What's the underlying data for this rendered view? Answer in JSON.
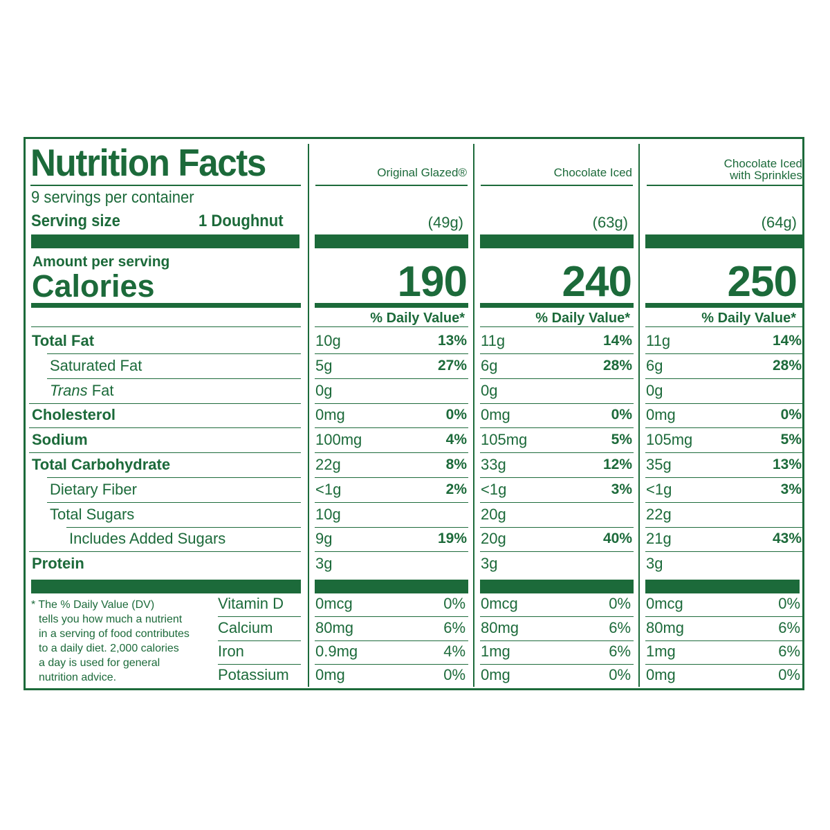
{
  "label": {
    "title": "Nutrition Facts",
    "servings_per_container": "9 servings per container",
    "serving_size_label": "Serving size",
    "serving_size_value": "1 Doughnut",
    "amount_per_serving": "Amount per serving",
    "calories_label": "Calories",
    "dv_header": "% Daily Value*"
  },
  "products": [
    {
      "name": "Original Glazed®",
      "weight": "(49g)",
      "calories": "190"
    },
    {
      "name": "Chocolate Iced",
      "weight": "(63g)",
      "calories": "240"
    },
    {
      "name_line1": "Chocolate Iced",
      "name_line2": "with Sprinkles",
      "weight": "(64g)",
      "calories": "250"
    }
  ],
  "nutrients": [
    {
      "label": "Total Fat",
      "values": [
        {
          "amount": "10g",
          "dv": "13%"
        },
        {
          "amount": "11g",
          "dv": "14%"
        },
        {
          "amount": "11g",
          "dv": "14%"
        }
      ]
    },
    {
      "label": "Saturated Fat",
      "values": [
        {
          "amount": "5g",
          "dv": "27%"
        },
        {
          "amount": "6g",
          "dv": "28%"
        },
        {
          "amount": "6g",
          "dv": "28%"
        }
      ]
    },
    {
      "label_italic": "Trans",
      "label_rest": " Fat",
      "values": [
        {
          "amount": "0g",
          "dv": ""
        },
        {
          "amount": "0g",
          "dv": ""
        },
        {
          "amount": "0g",
          "dv": ""
        }
      ]
    },
    {
      "label": "Cholesterol",
      "values": [
        {
          "amount": "0mg",
          "dv": "0%"
        },
        {
          "amount": "0mg",
          "dv": "0%"
        },
        {
          "amount": "0mg",
          "dv": "0%"
        }
      ]
    },
    {
      "label": "Sodium",
      "values": [
        {
          "amount": "100mg",
          "dv": "4%"
        },
        {
          "amount": "105mg",
          "dv": "5%"
        },
        {
          "amount": "105mg",
          "dv": "5%"
        }
      ]
    },
    {
      "label": "Total Carbohydrate",
      "values": [
        {
          "amount": "22g",
          "dv": "8%"
        },
        {
          "amount": "33g",
          "dv": "12%"
        },
        {
          "amount": "35g",
          "dv": "13%"
        }
      ]
    },
    {
      "label": "Dietary Fiber",
      "values": [
        {
          "amount": "<1g",
          "dv": "2%"
        },
        {
          "amount": "<1g",
          "dv": "3%"
        },
        {
          "amount": "<1g",
          "dv": "3%"
        }
      ]
    },
    {
      "label": "Total Sugars",
      "values": [
        {
          "amount": "10g",
          "dv": ""
        },
        {
          "amount": "20g",
          "dv": ""
        },
        {
          "amount": "22g",
          "dv": ""
        }
      ]
    },
    {
      "label": "Includes Added Sugars",
      "values": [
        {
          "amount": "9g",
          "dv": "19%"
        },
        {
          "amount": "20g",
          "dv": "40%"
        },
        {
          "amount": "21g",
          "dv": "43%"
        }
      ]
    },
    {
      "label": "Protein",
      "values": [
        {
          "amount": "3g",
          "dv": ""
        },
        {
          "amount": "3g",
          "dv": ""
        },
        {
          "amount": "3g",
          "dv": ""
        }
      ]
    }
  ],
  "vitamins": [
    {
      "label": "Vitamin D",
      "values": [
        {
          "amount": "0mcg",
          "dv": "0%"
        },
        {
          "amount": "0mcg",
          "dv": "0%"
        },
        {
          "amount": "0mcg",
          "dv": "0%"
        }
      ]
    },
    {
      "label": "Calcium",
      "values": [
        {
          "amount": "80mg",
          "dv": "6%"
        },
        {
          "amount": "80mg",
          "dv": "6%"
        },
        {
          "amount": "80mg",
          "dv": "6%"
        }
      ]
    },
    {
      "label": "Iron",
      "values": [
        {
          "amount": "0.9mg",
          "dv": "4%"
        },
        {
          "amount": "1mg",
          "dv": "6%"
        },
        {
          "amount": "1mg",
          "dv": "6%"
        }
      ]
    },
    {
      "label": "Potassium",
      "values": [
        {
          "amount": "0mg",
          "dv": "0%"
        },
        {
          "amount": "0mg",
          "dv": "0%"
        },
        {
          "amount": "0mg",
          "dv": "0%"
        }
      ]
    }
  ],
  "footnote": {
    "line1": "* The % Daily Value (DV)",
    "line2": "tells you how much a nutrient",
    "line3": "in a serving of food contributes",
    "line4": "to a daily diet. 2,000 calories",
    "line5": "a day is used for general",
    "line6": "nutrition advice."
  },
  "colors": {
    "label_green": "#1c6a3a",
    "background": "#ffffff"
  }
}
